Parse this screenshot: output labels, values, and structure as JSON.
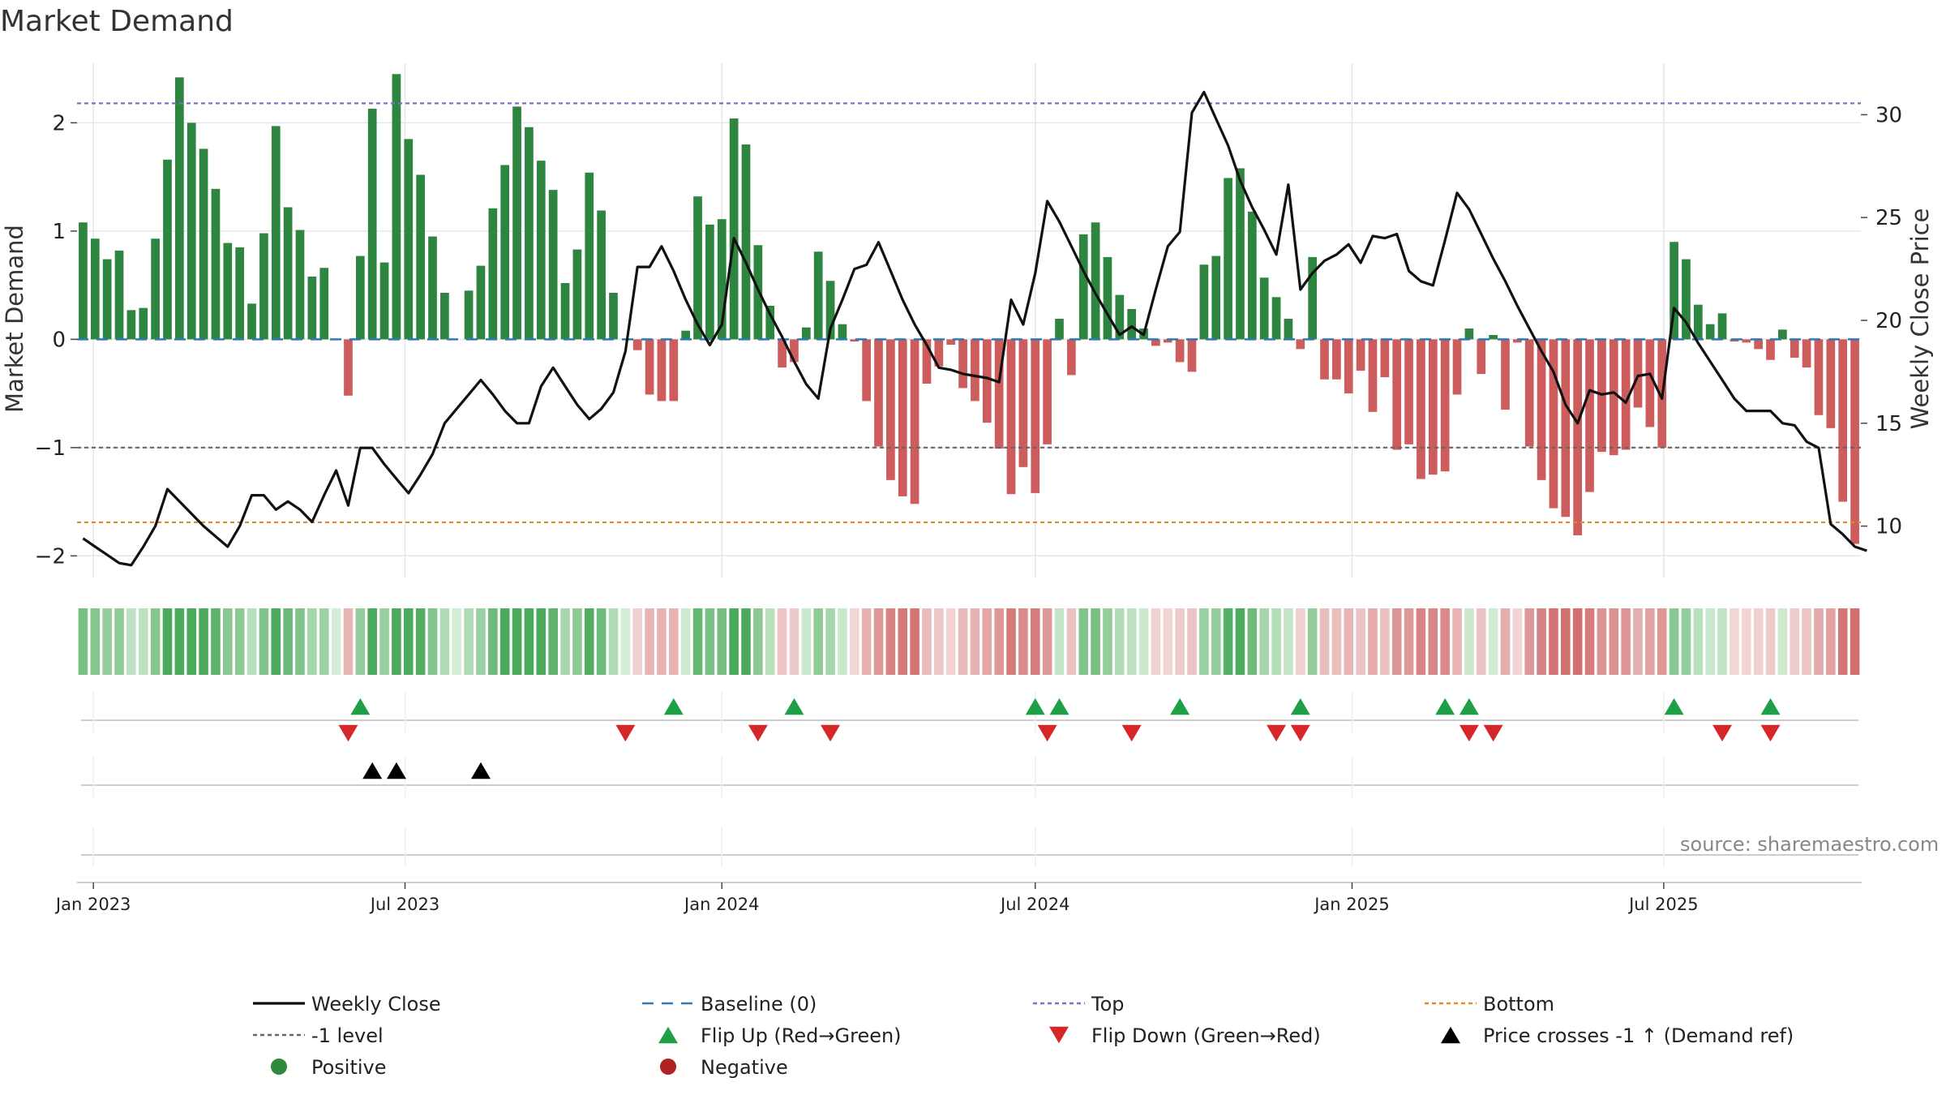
{
  "chart_data": {
    "type": "bar",
    "title": "Market Demand",
    "ylabel": "Market Demand",
    "y2label": "Weekly Close Price",
    "ylim": [
      -2.2,
      2.55
    ],
    "y2lim": [
      7.5,
      32.5
    ],
    "yticks": [
      "2",
      "1",
      "0",
      "−1",
      "−2"
    ],
    "yticks_values": [
      2,
      1,
      0,
      -1,
      -2
    ],
    "y2ticks": [
      "30",
      "25",
      "20",
      "15",
      "10"
    ],
    "y2ticks_values": [
      30,
      25,
      20,
      15,
      10
    ],
    "x_start": "2022-12-26",
    "x_ticks": [
      {
        "label": "Jan 2023",
        "date": "2023-01-01"
      },
      {
        "label": "Jul 2023",
        "date": "2023-07-01"
      },
      {
        "label": "Jan 2024",
        "date": "2024-01-01"
      },
      {
        "label": "Jul 2024",
        "date": "2024-07-01"
      },
      {
        "label": "Jan 2025",
        "date": "2025-01-01"
      },
      {
        "label": "Jul 2025",
        "date": "2025-07-01"
      }
    ],
    "series": [
      {
        "name": "Market Demand",
        "type": "bar",
        "values": [
          1.08,
          0.93,
          0.74,
          0.82,
          0.27,
          0.29,
          0.93,
          1.66,
          2.42,
          2.0,
          1.76,
          1.39,
          0.89,
          0.85,
          0.33,
          0.98,
          1.97,
          1.22,
          1.01,
          0.58,
          0.66,
          0,
          -0.52,
          0.77,
          2.13,
          0.71,
          2.45,
          1.85,
          1.52,
          0.95,
          0.43,
          0,
          0.45,
          0.68,
          1.21,
          1.61,
          2.15,
          1.96,
          1.65,
          1.38,
          0.52,
          0.83,
          1.54,
          1.19,
          0.43,
          0,
          -0.1,
          -0.51,
          -0.57,
          -0.57,
          0.08,
          1.32,
          1.06,
          1.11,
          2.04,
          1.8,
          0.87,
          0.31,
          -0.26,
          -0.21,
          0.11,
          0.81,
          0.54,
          0.14,
          -0.02,
          -0.57,
          -0.99,
          -1.3,
          -1.45,
          -1.52,
          -0.41,
          -0.25,
          -0.05,
          -0.45,
          -0.57,
          -0.77,
          -1.01,
          -1.43,
          -1.18,
          -1.42,
          -0.97,
          0.19,
          -0.33,
          0.97,
          1.08,
          0.76,
          0.41,
          0.28,
          0.1,
          -0.06,
          -0.03,
          -0.21,
          -0.3,
          0.69,
          0.77,
          1.49,
          1.58,
          1.18,
          0.57,
          0.39,
          0.19,
          -0.09,
          0.76,
          -0.37,
          -0.37,
          -0.5,
          -0.29,
          -0.67,
          -0.35,
          -1.02,
          -0.97,
          -1.29,
          -1.25,
          -1.22,
          -0.51,
          0.1,
          -0.32,
          0.04,
          -0.65,
          -0.03,
          -0.99,
          -1.3,
          -1.56,
          -1.64,
          -1.81,
          -1.41,
          -1.04,
          -1.07,
          -1.02,
          -0.63,
          -0.81,
          -1.0,
          0.9,
          0.74,
          0.32,
          0.14,
          0.24,
          -0.02,
          -0.03,
          -0.09,
          -0.19,
          0.09,
          -0.17,
          -0.26,
          -0.7,
          -0.82,
          -1.5,
          -1.89
        ]
      },
      {
        "name": "Weekly Close",
        "type": "line",
        "values": [
          9.4,
          9.0,
          8.6,
          8.2,
          8.1,
          9.0,
          10.0,
          11.8,
          11.2,
          10.6,
          10.0,
          9.5,
          9.0,
          10.0,
          11.5,
          11.5,
          10.8,
          11.2,
          10.8,
          10.2,
          11.5,
          12.7,
          11.0,
          13.8,
          13.8,
          13.0,
          12.3,
          11.6,
          12.5,
          13.5,
          15.0,
          15.7,
          16.4,
          17.1,
          16.4,
          15.6,
          15.0,
          15.0,
          16.8,
          17.7,
          16.8,
          15.9,
          15.2,
          15.7,
          16.5,
          18.5,
          22.6,
          22.6,
          23.6,
          22.4,
          21.0,
          19.8,
          18.8,
          19.8,
          24.0,
          22.8,
          21.5,
          20.3,
          19.2,
          18.0,
          16.9,
          16.2,
          19.6,
          21.0,
          22.5,
          22.7,
          23.8,
          22.4,
          21.0,
          19.8,
          18.8,
          17.7,
          17.6,
          17.4,
          17.3,
          17.2,
          17.0,
          21.0,
          19.8,
          22.3,
          25.8,
          24.8,
          23.6,
          22.4,
          21.3,
          20.3,
          19.3,
          19.7,
          19.3,
          21.5,
          23.6,
          24.3,
          30.1,
          31.1,
          29.8,
          28.5,
          26.8,
          25.5,
          24.4,
          23.2,
          26.6,
          21.5,
          22.3,
          22.9,
          23.2,
          23.7,
          22.8,
          24.1,
          24.0,
          24.2,
          22.4,
          21.9,
          21.7,
          23.9,
          26.2,
          25.4,
          24.2,
          23.0,
          21.9,
          20.7,
          19.6,
          18.5,
          17.5,
          15.9,
          15.0,
          16.6,
          16.4,
          16.5,
          16.0,
          17.3,
          17.4,
          16.2,
          20.6,
          19.9,
          18.9,
          18.0,
          17.1,
          16.2,
          15.6,
          15.6,
          15.6,
          15.0,
          14.9,
          14.1,
          13.8,
          10.1,
          9.6,
          9.0,
          8.8
        ]
      }
    ],
    "reference_lines": [
      {
        "name": "Top",
        "value": 2.18,
        "color": "#7b6fc4"
      },
      {
        "name": "-1 level",
        "value": -1,
        "color": "#666666"
      },
      {
        "name": "Bottom",
        "value": -1.69,
        "color": "#e08a2e"
      },
      {
        "name": "Baseline (0)",
        "value": 0,
        "color": "#2d78b8"
      }
    ],
    "markers": {
      "flip_up": [
        23,
        49,
        59,
        79,
        81,
        91,
        101,
        113,
        115,
        132,
        140
      ],
      "flip_down": [
        22,
        45,
        56,
        62,
        80,
        87,
        99,
        101,
        115,
        117,
        136,
        140
      ],
      "price_cross": [
        24,
        26,
        33
      ]
    },
    "annotations": [
      "source: sharemaestro.com"
    ],
    "legend": {
      "position": "bottom",
      "items": [
        {
          "label": "Weekly Close",
          "kind": "line",
          "color": "#111111"
        },
        {
          "label": "Baseline (0)",
          "kind": "dash",
          "color": "#2d78b8"
        },
        {
          "label": "Top",
          "kind": "dot",
          "color": "#7b6fc4"
        },
        {
          "label": "Bottom",
          "kind": "dot",
          "color": "#e08a2e"
        },
        {
          "label": "-1 level",
          "kind": "dot",
          "color": "#666666"
        },
        {
          "label": "Flip Up (Red→Green)",
          "kind": "tri-up",
          "color": "#1fa046"
        },
        {
          "label": "Flip Down (Green→Red)",
          "kind": "tri-down",
          "color": "#d62728"
        },
        {
          "label": "Price crosses -1 ↑ (Demand ref)",
          "kind": "tri-up",
          "color": "#000000"
        },
        {
          "label": "Positive",
          "kind": "circle",
          "color": "#2e8b3e"
        },
        {
          "label": "Negative",
          "kind": "circle",
          "color": "#b22222"
        }
      ]
    },
    "colors": {
      "positive": "#2e8540",
      "negative": "#cd5c5c",
      "price": "#111111",
      "grid": "#e6e6e6"
    }
  }
}
